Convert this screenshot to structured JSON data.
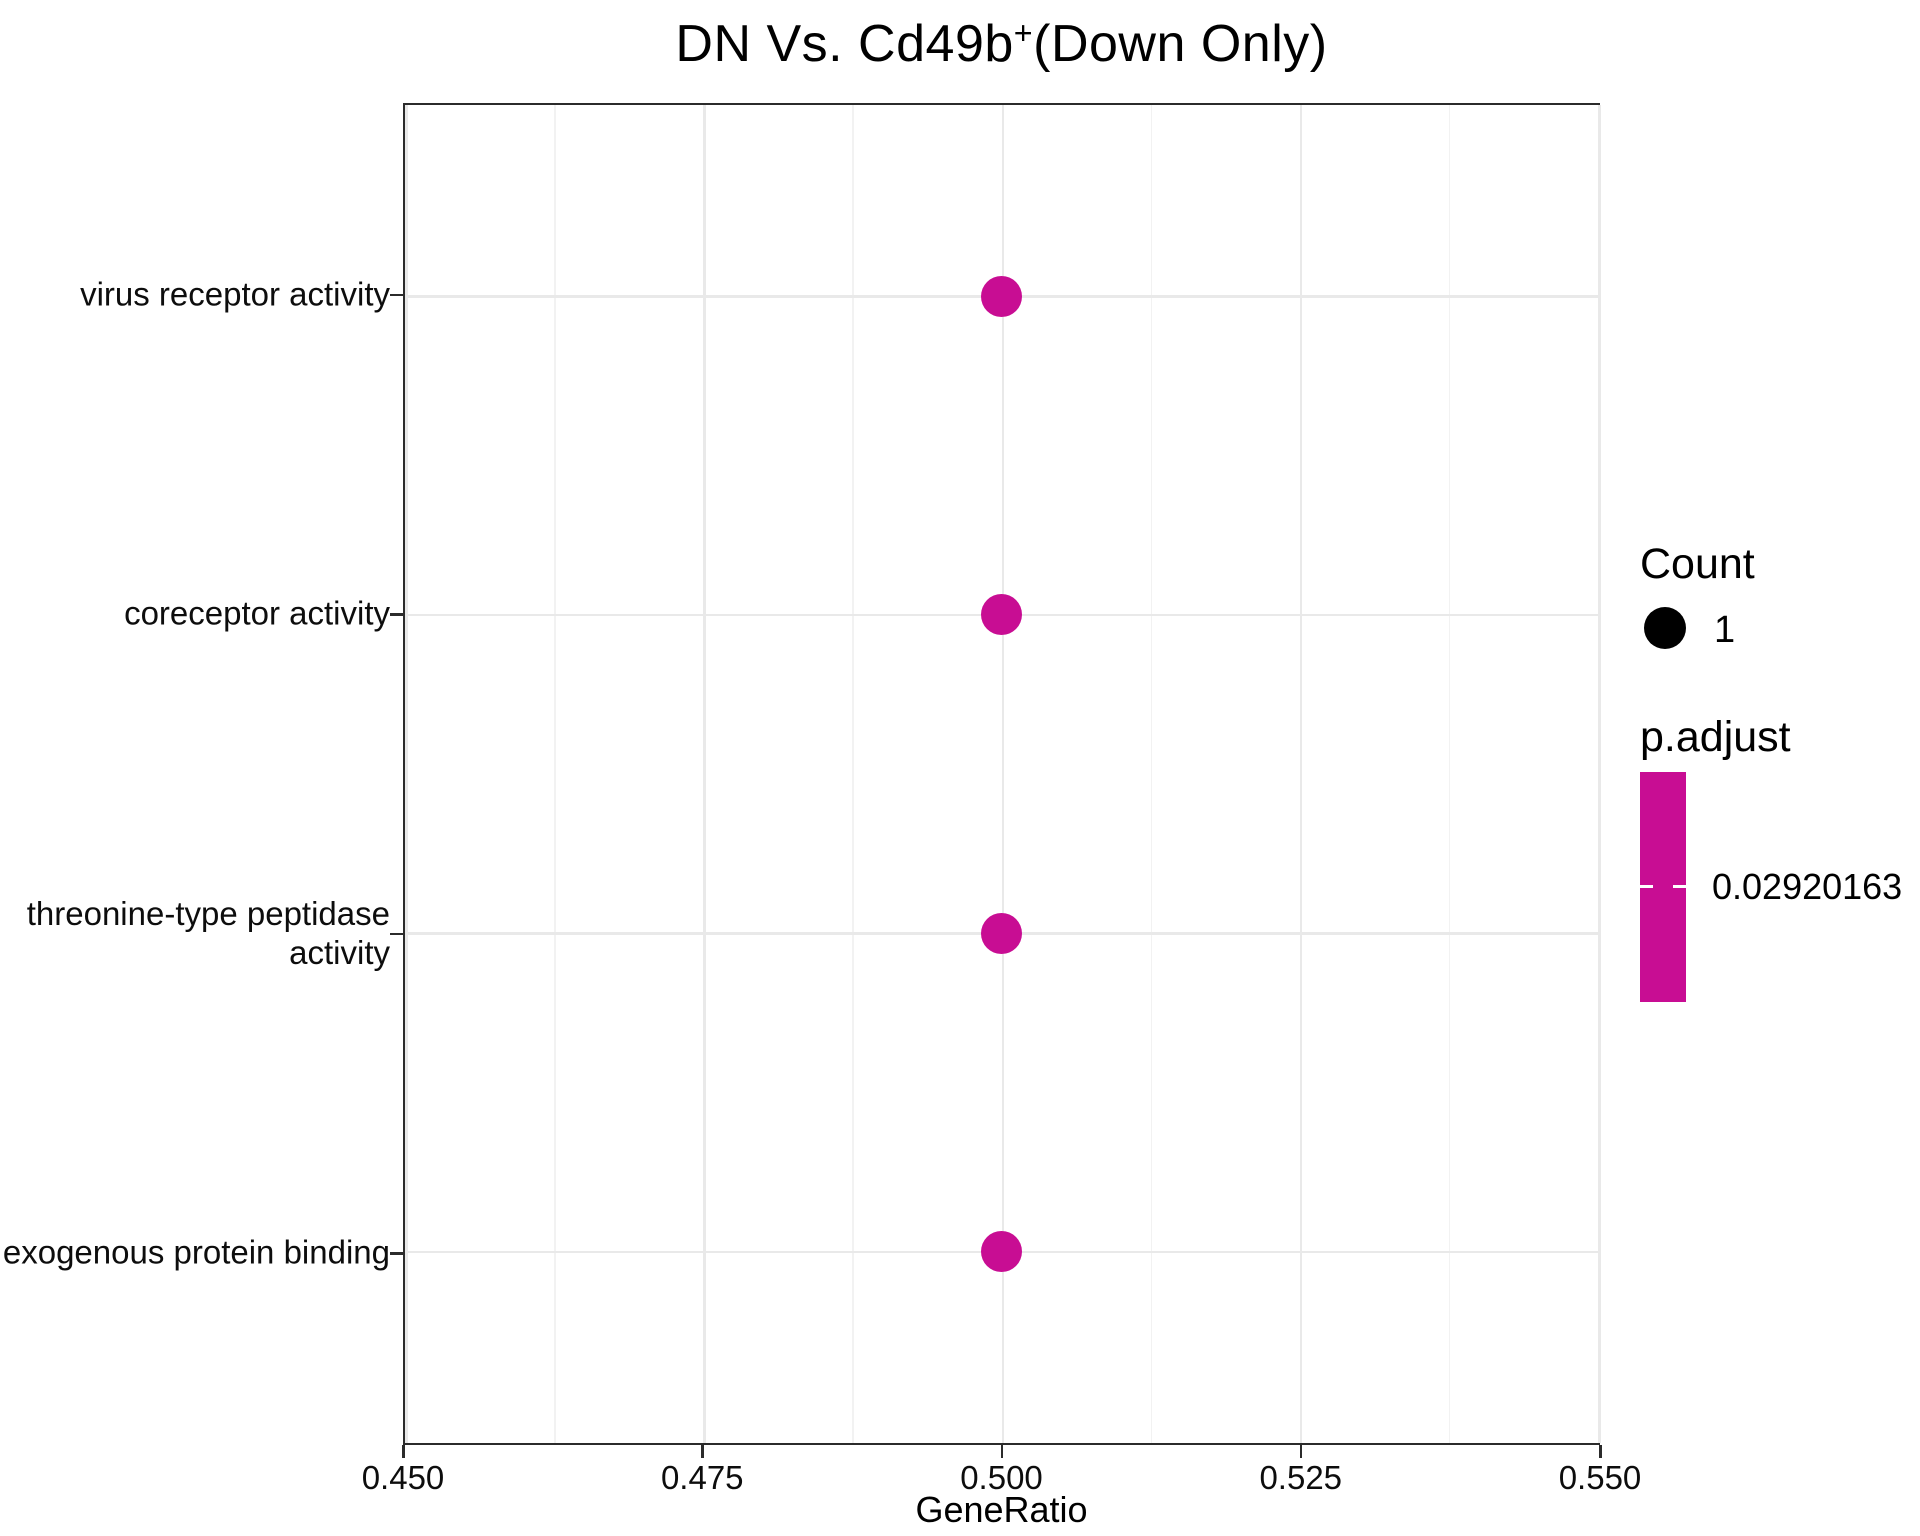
{
  "chart_data": {
    "type": "scatter",
    "title_parts": {
      "pre": "DN Vs. Cd49b",
      "sup": "+",
      "post": "(Down Only)"
    },
    "title_full": "DN Vs. Cd49b+(Down Only)",
    "xlabel": "GeneRatio",
    "xlim": [
      0.45,
      0.55
    ],
    "x_tick_labels": [
      "0.450",
      "0.475",
      "0.500",
      "0.525",
      "0.550"
    ],
    "grid": true,
    "legend_position": "right",
    "categories": [
      "virus receptor activity",
      "coreceptor activity",
      "threonine-type peptidase activity",
      "exogenous protein binding"
    ],
    "points": [
      {
        "category": "virus receptor activity",
        "x": 0.5,
        "count": 1,
        "p_adjust": 0.02920163
      },
      {
        "category": "coreceptor activity",
        "x": 0.5,
        "count": 1,
        "p_adjust": 0.02920163
      },
      {
        "category": "threonine-type peptidase activity",
        "x": 0.5,
        "count": 1,
        "p_adjust": 0.02920163
      },
      {
        "category": "exogenous protein binding",
        "x": 0.5,
        "count": 1,
        "p_adjust": 0.02920163
      }
    ],
    "colors": {
      "point": "#C80D93",
      "grid_major": "#e9e9e9",
      "grid_minor": "#f2f2f2",
      "panel_border": "#2b2b2b"
    },
    "legend": {
      "count": {
        "title": "Count",
        "items": [
          {
            "label": "1"
          }
        ]
      },
      "p_adjust": {
        "title": "p.adjust",
        "tick_label": "0.02920163",
        "bar_color": "#C80D93"
      }
    }
  }
}
